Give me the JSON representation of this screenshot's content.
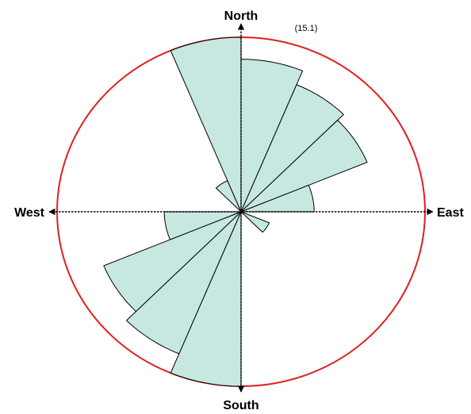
{
  "chart_data": {
    "type": "rose",
    "directions": {
      "north": "North",
      "south": "South",
      "east": "East",
      "west": "West"
    },
    "scale_label": "(15.1)",
    "max_value": 15.1,
    "sector_width_deg": 22.5,
    "sector_start_deg": [
      0,
      22.5,
      45,
      67.5,
      90,
      112.5,
      135,
      157.5,
      180,
      202.5,
      225,
      247.5,
      270,
      292.5,
      315,
      337.5
    ],
    "values": [
      13.2,
      11.9,
      11.2,
      6.0,
      0.0,
      2.5,
      0.0,
      0.0,
      15.1,
      13.3,
      12.2,
      6.3,
      0.0,
      0.0,
      2.9,
      15.1
    ],
    "colors": {
      "fill": "#c6e8e1",
      "outline": "#000000",
      "circle": "#e31e1e",
      "axes": "#000000"
    }
  }
}
